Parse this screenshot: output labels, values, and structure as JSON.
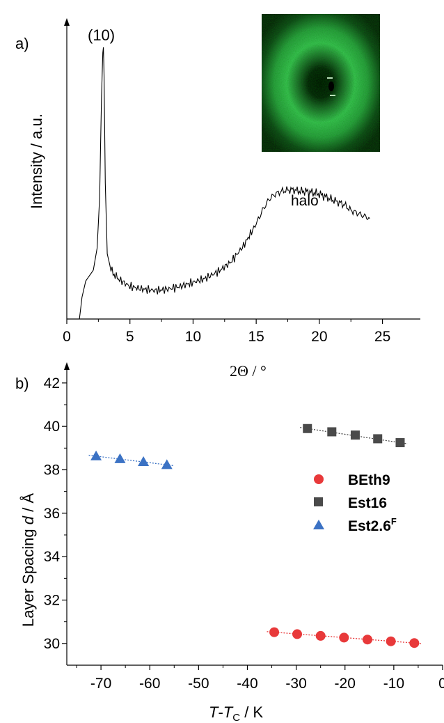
{
  "panel_a": {
    "label": "a)",
    "peak_label": "(10)",
    "halo_label": "halo",
    "ylabel": "Intensity / a.u.",
    "xlabel": "2Θ / °",
    "colors": {
      "trace": "#000000",
      "inset_ring": "#3fc25a",
      "inset_bg": "#0a170c"
    }
  },
  "panel_b": {
    "label": "b)",
    "ylabel_prefix": "Layer Spacing ",
    "ylabel_var": "d",
    "ylabel_unit": " / Å",
    "xlabel_var": "T",
    "xlabel_dash": "-",
    "xlabel_var2": "T",
    "xlabel_sub": "C",
    "xlabel_unit": " / K",
    "legend": [
      {
        "marker": "circle",
        "color": "#e8393a",
        "label": "BEth9",
        "sup": ""
      },
      {
        "marker": "square",
        "color": "#4a4a4a",
        "label": "Est16",
        "sup": ""
      },
      {
        "marker": "triangle",
        "color": "#3b72c4",
        "label": "Est2.6",
        "sup": "F"
      }
    ]
  },
  "chart_data": [
    {
      "type": "line",
      "title": "",
      "xlabel": "2Θ / °",
      "ylabel": "Intensity / a.u.",
      "xlim": [
        0,
        28
      ],
      "ylim": [
        0,
        1
      ],
      "xticks": [
        0,
        5,
        10,
        15,
        20,
        25
      ],
      "y_ticks_shown": false,
      "grid": false,
      "annotations": [
        {
          "text": "(10)",
          "x": 2.9
        },
        {
          "text": "halo",
          "x": 17.5
        }
      ],
      "series": [
        {
          "x": [
            1.0,
            1.2,
            1.5,
            1.8,
            2.1,
            2.4,
            2.6,
            2.75,
            2.85,
            2.9,
            2.95,
            3.05,
            3.2,
            3.5,
            4,
            5,
            6,
            7,
            8,
            9,
            10,
            11,
            12,
            13,
            14,
            15,
            15.5,
            16,
            16.5,
            17,
            17.5,
            18,
            18.5,
            19,
            19.5,
            20,
            20.5,
            21,
            21.5,
            22,
            22.5,
            23,
            23.5,
            24
          ],
          "values": [
            0.0,
            0.08,
            0.14,
            0.16,
            0.18,
            0.26,
            0.45,
            0.82,
            0.98,
            1.0,
            0.9,
            0.5,
            0.24,
            0.18,
            0.15,
            0.12,
            0.11,
            0.105,
            0.11,
            0.12,
            0.135,
            0.15,
            0.175,
            0.21,
            0.27,
            0.35,
            0.4,
            0.44,
            0.46,
            0.47,
            0.475,
            0.475,
            0.47,
            0.47,
            0.465,
            0.46,
            0.45,
            0.44,
            0.43,
            0.42,
            0.4,
            0.39,
            0.38,
            0.37
          ]
        }
      ],
      "inset": "2D diffraction pattern: dark background, green diffuse ring, small central reflections"
    },
    {
      "type": "scatter",
      "title": "",
      "xlabel": "T-TC / K",
      "ylabel": "Layer Spacing d / Å",
      "xlim": [
        -77,
        0
      ],
      "ylim": [
        29,
        42.7
      ],
      "xticks": [
        -70,
        -60,
        -50,
        -40,
        -30,
        -20,
        -10,
        0
      ],
      "yticks": [
        30,
        32,
        34,
        36,
        38,
        40,
        42
      ],
      "grid": false,
      "legend_position": "right-middle",
      "series": [
        {
          "name": "BEth9",
          "marker": "circle",
          "color": "#e8393a",
          "x": [
            -34.5,
            -29.8,
            -25,
            -20.2,
            -15.4,
            -10.6,
            -5.8
          ],
          "y": [
            30.52,
            30.43,
            30.35,
            30.27,
            30.18,
            30.1,
            30.02
          ]
        },
        {
          "name": "Est16",
          "marker": "square",
          "color": "#4a4a4a",
          "x": [
            -27.7,
            -22.7,
            -17.9,
            -13.3,
            -8.7
          ],
          "y": [
            39.9,
            39.75,
            39.6,
            39.43,
            39.25
          ]
        },
        {
          "name": "Est2.6F",
          "marker": "triangle",
          "color": "#3b72c4",
          "x": [
            -71,
            -66.1,
            -61.3,
            -56.5
          ],
          "y": [
            38.63,
            38.5,
            38.37,
            38.23
          ]
        }
      ]
    }
  ]
}
